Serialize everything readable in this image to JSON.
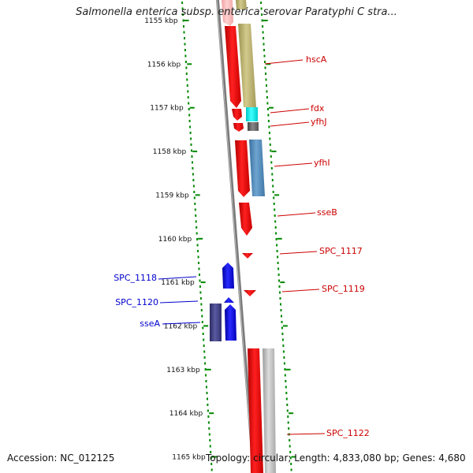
{
  "title": "Salmonella enterica subsp. enterica serovar Paratyphi C stra...",
  "accession": "Accession: NC_012125",
  "topology": "Topology: circular; Length: 4,833,080 bp; Genes: 4,680",
  "kbp_ticks": [
    "1155 kbp",
    "1156 kbp",
    "1157 kbp",
    "1158 kbp",
    "1159 kbp",
    "1160 kbp",
    "1161 kbp",
    "1162 kbp",
    "1163 kbp",
    "1164 kbp",
    "1165 kbp"
  ],
  "forward_genes": [
    "hscA",
    "fdx",
    "yfhJ",
    "yfhI",
    "sseB",
    "SPC_1117",
    "SPC_1119",
    "SPC_1122"
  ],
  "reverse_genes": [
    "SPC_1118",
    "SPC_1120",
    "sseA"
  ],
  "colors": {
    "forward_label": "#cc0000",
    "reverse_label": "#0000cc",
    "forward_gene": "#ff0000",
    "reverse_gene": "#0000ee",
    "tick_green": "#008800",
    "backbone": "#888888"
  }
}
